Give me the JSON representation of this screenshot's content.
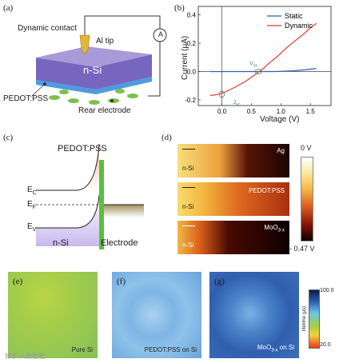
{
  "panel_labels": {
    "a": "(a)",
    "b": "(b)",
    "c": "(c)",
    "d": "(d)",
    "e": "(e)",
    "f": "(f)",
    "g": "(g)"
  },
  "panel_a": {
    "dynamic_contact": "Dynamic contact",
    "al_tip": "Al tip",
    "ammeter": "A",
    "nsi": "n-Si",
    "pedot": "PEDOT:PSS",
    "rear_electrode": "Rear electrode",
    "colors": {
      "block_top": "#a79ad8",
      "block_side": "#7766bf",
      "blue_layer": "#4b9de0",
      "feet": "#7cc04f"
    }
  },
  "chart_data": {
    "type": "line",
    "xlabel": "Voltage (V)",
    "ylabel": "Current (μA)",
    "xlim": [
      -0.4,
      1.85
    ],
    "ylim": [
      -0.24,
      0.46
    ],
    "xticks": [
      {
        "v": 0.0,
        "label": "0.0"
      },
      {
        "v": 0.5,
        "label": "0.5"
      },
      {
        "v": 1.0,
        "label": "1.0"
      },
      {
        "v": 1.5,
        "label": "1.5"
      }
    ],
    "yticks": [
      {
        "v": -0.2,
        "label": "-0.2"
      },
      {
        "v": 0.0,
        "label": "0.0"
      },
      {
        "v": 0.2,
        "label": "0.2"
      },
      {
        "v": 0.4,
        "label": "0.4"
      }
    ],
    "legend": "top-right",
    "series": [
      {
        "name": "Static",
        "color": "#2f5fb3",
        "x": [
          -0.2,
          0.0,
          0.3,
          0.6,
          0.9,
          1.2,
          1.4,
          1.6
        ],
        "y": [
          0.0,
          0.0,
          0.0,
          0.0,
          0.0,
          0.005,
          0.012,
          0.022
        ]
      },
      {
        "name": "Dynamic",
        "color": "#e33b2e",
        "x": [
          -0.2,
          -0.05,
          0.05,
          0.2,
          0.4,
          0.6,
          0.7,
          0.8,
          0.95,
          1.1,
          1.25,
          1.4,
          1.5,
          1.6
        ],
        "y": [
          -0.17,
          -0.16,
          -0.145,
          -0.115,
          -0.07,
          -0.01,
          0.02,
          0.06,
          0.11,
          0.17,
          0.22,
          0.27,
          0.31,
          0.34
        ]
      }
    ],
    "annotations": [
      {
        "text": "V",
        "sub": "oc",
        "x": 0.62,
        "y": 0.0
      },
      {
        "text": "J",
        "sub": "sc",
        "x": 0.0,
        "y": -0.16
      }
    ]
  },
  "panel_c": {
    "pedot": "PEDOT:PSS",
    "ec": "E",
    "ec_sub": "C",
    "ef": "E",
    "ef_sub": "F",
    "ev": "E",
    "ev_sub": "V",
    "nsi": "n-Si",
    "electrode": "Electrode"
  },
  "panel_d": {
    "maps": [
      {
        "label": "Ag",
        "sublabel": "n-Si",
        "label_sub": ""
      },
      {
        "label": "PEDOT:PSS",
        "sublabel": "n-Si",
        "label_sub": ""
      },
      {
        "label": "MoO",
        "label_sub": "3-x",
        "sublabel": "n-Si"
      }
    ],
    "scale_max": "0 V",
    "scale_min": "- 0.47 V"
  },
  "panel_efg": {
    "maps": [
      "Pure Si",
      "PEDOT:PSS on Si",
      "MoO3-x on Si"
    ],
    "map3_base": "MoO",
    "map3_sub": "3-x",
    "map3_rest": " on Si",
    "colorbar_title": "lifetime (μs)",
    "colorbar_max": "100.0",
    "colorbar_min": "20.0",
    "watermark": "知乎 入数智能"
  }
}
